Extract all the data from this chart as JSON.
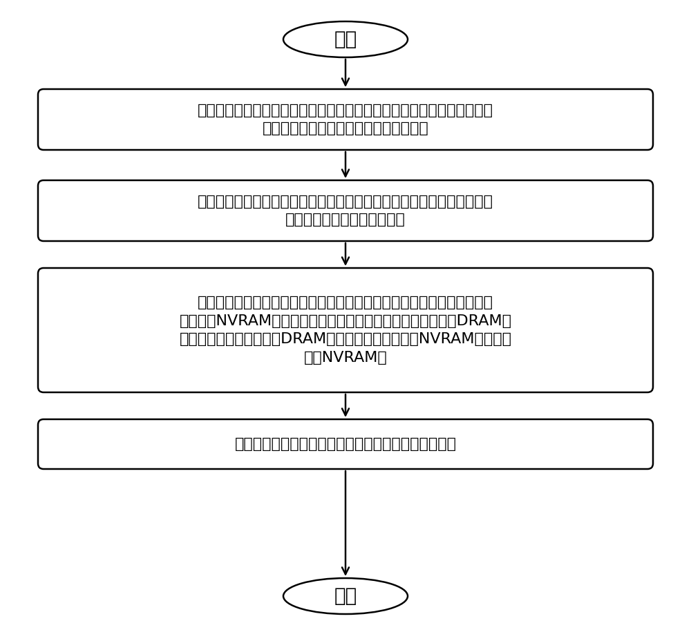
{
  "background_color": "#ffffff",
  "border_color": "#000000",
  "text_color": "#000000",
  "arrow_color": "#000000",
  "start_end_text": [
    "开始",
    "结束"
  ],
  "box_texts": [
    "第一步，构建非易失内存一致性更新系统，非易失内存一致性更新系统以\n动态链接库的形式发布给用户应用程序。",
    "第二步，用户应用程序加载非易失内存一致性更新系统。非易失内存一致\n性更新系统执行初始化操作。",
    "第三步，用户应用程序执行，一致性更新系统监控用户应用程序对动态非\n易失内存NVRAM的写访问操作，并将写访问操作的结果缓存于DRAM缓\n存资源池，并周期性地将DRAM缓存资源池中缓存的对NVRAM的修改写\n回至NVRAM。",
    "第四步，用户应用程序卸载非易失内存一致性更新系统"
  ],
  "figsize": [
    10.0,
    9.15
  ],
  "dpi": 100,
  "font_size_main": 16,
  "font_size_terminal": 20,
  "line_width": 1.8
}
